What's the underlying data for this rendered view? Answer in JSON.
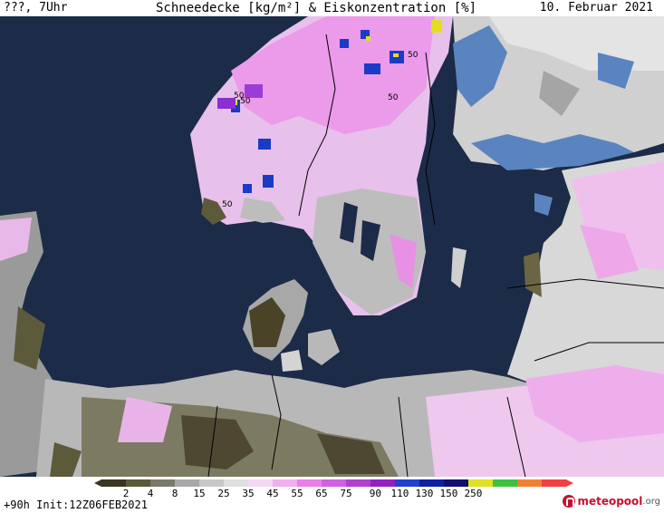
{
  "header": {
    "run_label": "???, 7Uhr",
    "title": "Schneedecke [kg/m²] & Eiskonzentration [%]",
    "date": "10. Februar 2021"
  },
  "footer": {
    "run_info": "+90h Init:12Z06FEB2021",
    "logo_main": "meteopool",
    "logo_tld": ".org"
  },
  "legend": {
    "ticks": [
      "2",
      "4",
      "8",
      "15",
      "25",
      "35",
      "45",
      "55",
      "65",
      "75",
      "90",
      "110",
      "130",
      "150",
      "250"
    ],
    "colors": [
      "#3a3520",
      "#5a5a3a",
      "#7a7a6a",
      "#a8a8a8",
      "#c8c8c8",
      "#e0e0e0",
      "#f4d8f4",
      "#f0b0f0",
      "#e880e8",
      "#d060e0",
      "#b040d0",
      "#9020c0",
      "#2040d0",
      "#1020a0",
      "#101070",
      "#e0e020",
      "#40c040",
      "#f08030",
      "#f04040"
    ]
  },
  "map_labels": {
    "contour_value": "50"
  },
  "colors": {
    "sea": "#1c2b48",
    "land_grey": "#b4b4b4",
    "snow_pink": "#f0b6ec",
    "ice_blue": "#5a84c0"
  }
}
